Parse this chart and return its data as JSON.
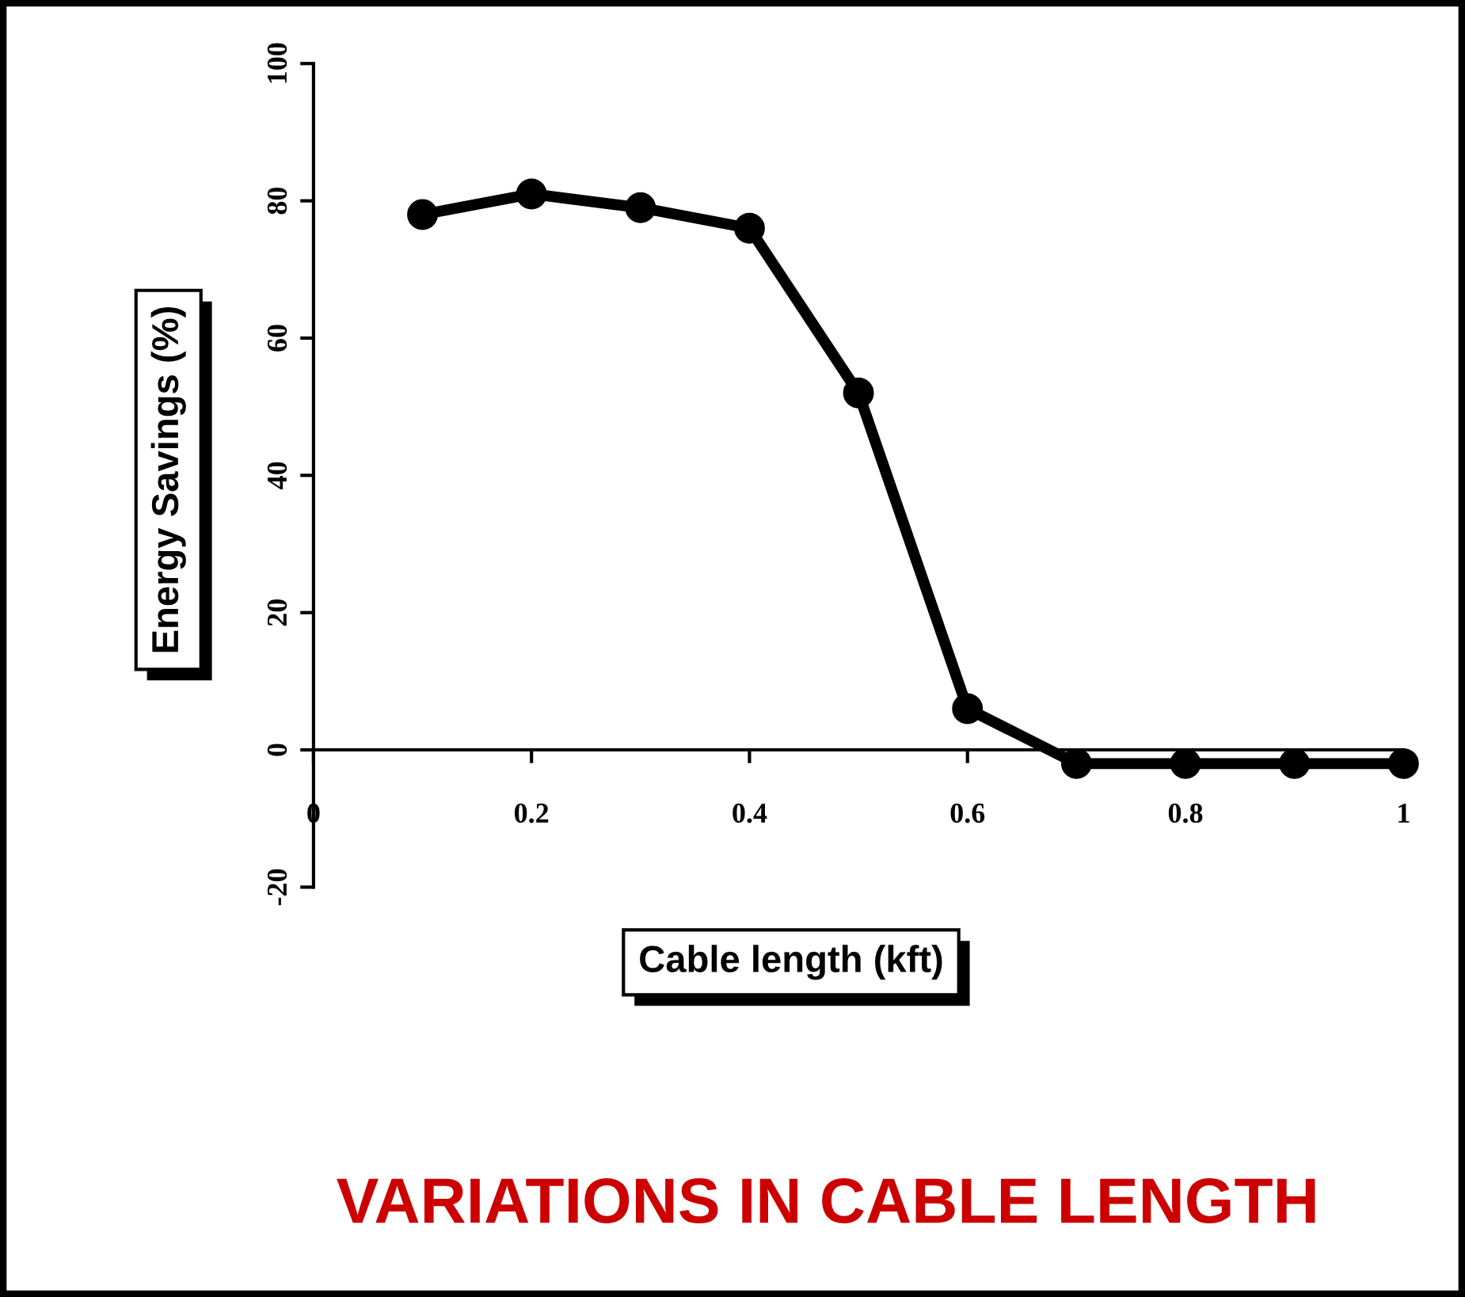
{
  "chart_data": {
    "type": "line",
    "title": "VARIATIONS IN CABLE LENGTH",
    "xlabel": "Cable length (kft)",
    "ylabel": "Energy Savings (%)",
    "x": [
      0.1,
      0.2,
      0.3,
      0.4,
      0.5,
      0.6,
      0.7,
      0.8,
      0.9,
      1.0
    ],
    "series": [
      {
        "color": "#000000",
        "values": [
          78,
          81,
          79,
          76,
          52,
          6,
          -2,
          -2,
          -2,
          -2
        ]
      }
    ],
    "xlim": [
      0,
      1
    ],
    "xticks": [
      0,
      0.2,
      0.4,
      0.6,
      0.8,
      1
    ],
    "ylim": [
      -20,
      100
    ],
    "yticks": [
      -20,
      0,
      20,
      40,
      60,
      80,
      100
    ],
    "marker": "circle",
    "line_style": "solid",
    "grid": false,
    "legend": false
  }
}
